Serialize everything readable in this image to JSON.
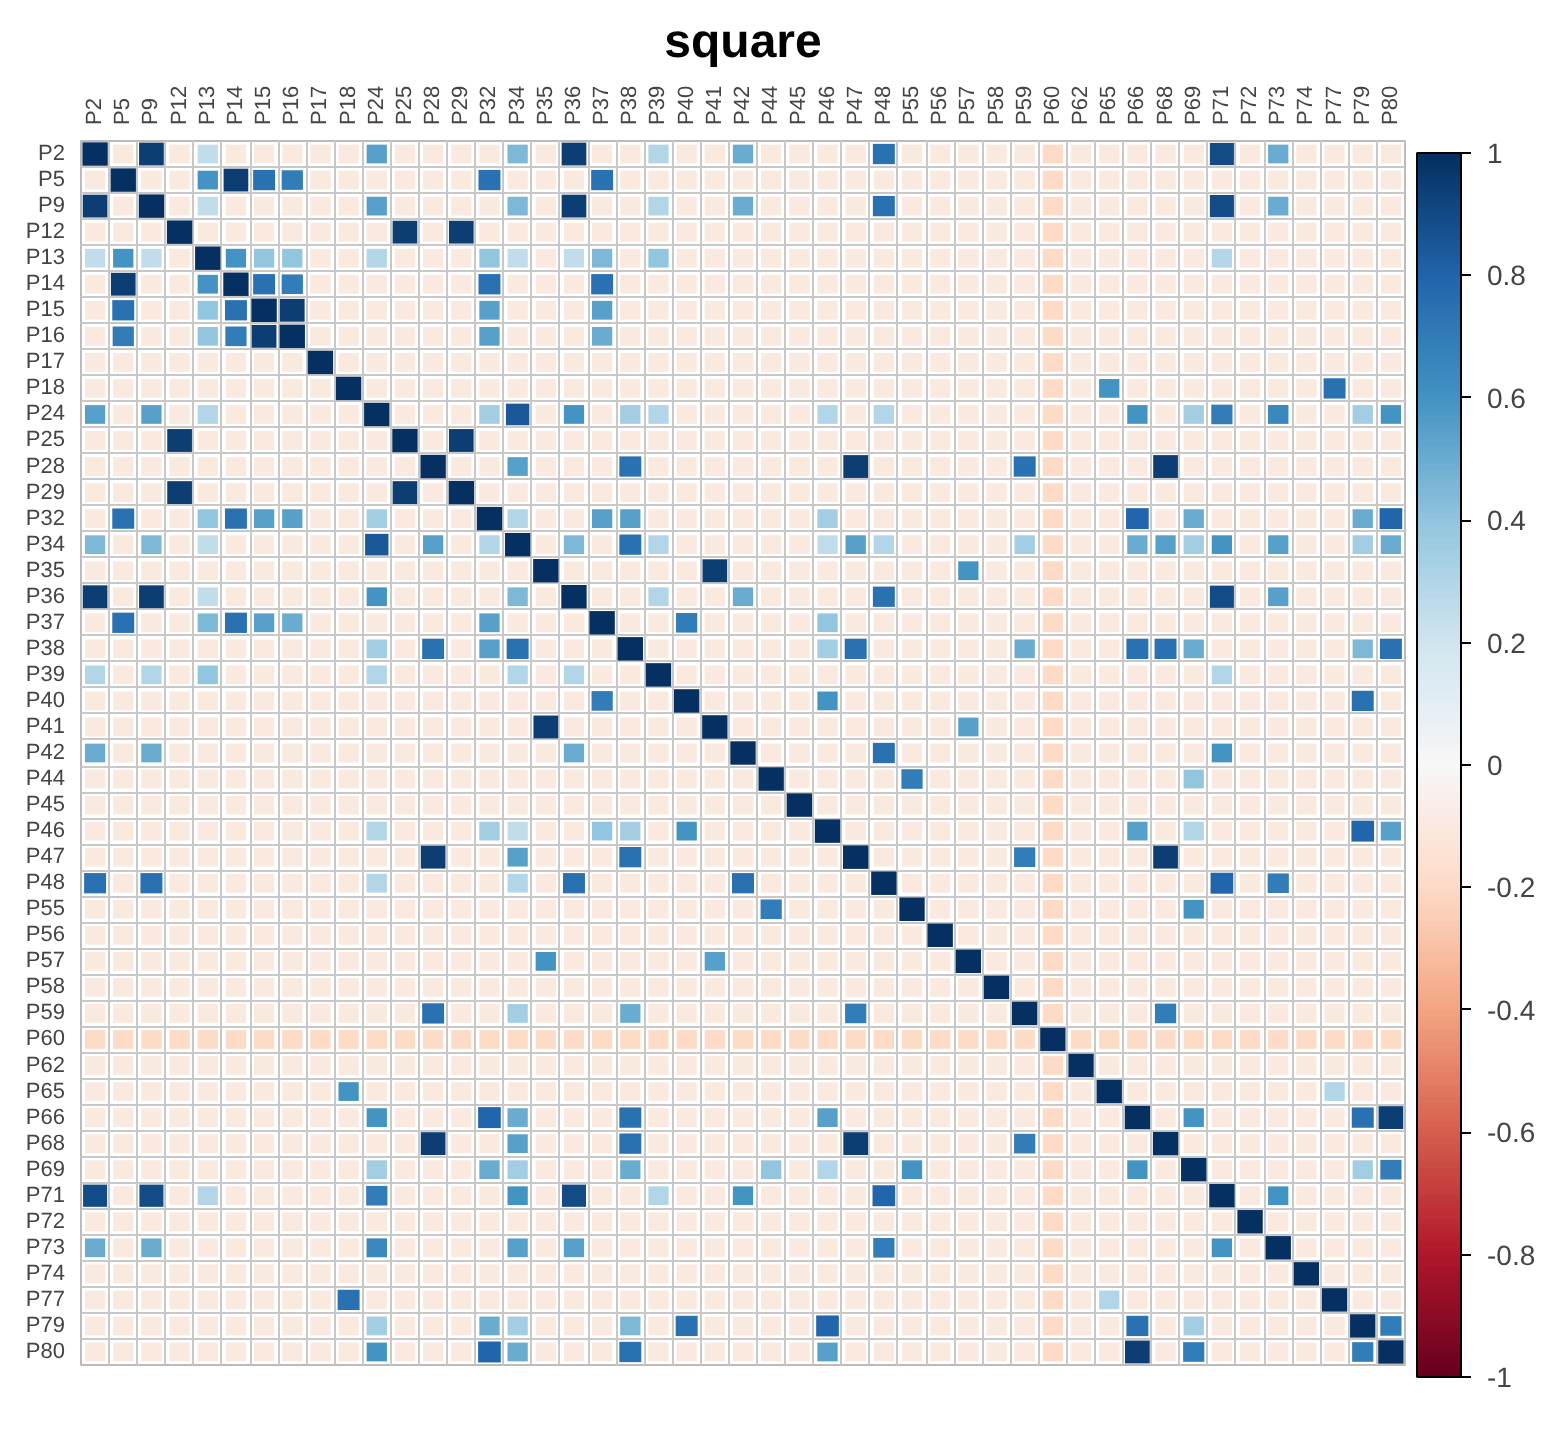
{
  "chart_data": {
    "type": "heatmap",
    "title": "square",
    "categories": [
      "P2",
      "P5",
      "P9",
      "P12",
      "P13",
      "P14",
      "P15",
      "P16",
      "P17",
      "P18",
      "P24",
      "P25",
      "P28",
      "P29",
      "P32",
      "P34",
      "P35",
      "P36",
      "P37",
      "P38",
      "P39",
      "P40",
      "P41",
      "P42",
      "P44",
      "P45",
      "P46",
      "P47",
      "P48",
      "P55",
      "P56",
      "P57",
      "P58",
      "P59",
      "P60",
      "P62",
      "P65",
      "P66",
      "P68",
      "P69",
      "P71",
      "P72",
      "P73",
      "P74",
      "P77",
      "P79",
      "P80"
    ],
    "y_categories": [
      "P2",
      "P5",
      "P9",
      "P12",
      "P13",
      "P14",
      "P15",
      "P16",
      "P17",
      "P18",
      "P24",
      "P25",
      "P28",
      "P29",
      "P32",
      "P34",
      "P35",
      "P36",
      "P37",
      "P38",
      "P39",
      "P40",
      "P41",
      "P42",
      "P44",
      "P45",
      "P46",
      "P47",
      "P48",
      "P55",
      "P56",
      "P57",
      "P58",
      "P59",
      "P60",
      "P62",
      "P65",
      "P66",
      "P68",
      "P69",
      "P71",
      "P72",
      "P73",
      "P74",
      "P77",
      "P79",
      "P80"
    ],
    "cells": [
      [
        1,
        -0.1,
        0.95,
        -0.1,
        0.25,
        -0.1,
        -0.1,
        -0.1,
        -0.1,
        -0.1,
        0.55,
        -0.1,
        -0.1,
        -0.1,
        -0.1,
        0.45,
        -0.1,
        0.95,
        -0.1,
        -0.1,
        0.3,
        -0.1,
        -0.1,
        0.5,
        -0.1,
        -0.1,
        -0.1,
        -0.1,
        0.75,
        -0.1,
        -0.1,
        -0.1,
        -0.1,
        -0.1,
        -0.2,
        -0.1,
        -0.1,
        -0.1,
        -0.1,
        -0.1,
        0.9,
        -0.1,
        0.5,
        -0.1,
        -0.1,
        -0.1,
        -0.1
      ],
      [
        -0.1,
        1,
        -0.1,
        -0.1,
        0.6,
        0.95,
        0.75,
        0.7,
        -0.1,
        -0.1,
        -0.1,
        -0.1,
        -0.1,
        -0.1,
        0.75,
        -0.1,
        -0.1,
        -0.1,
        0.75,
        -0.1,
        -0.1,
        -0.1,
        -0.1,
        -0.1,
        -0.1,
        -0.1,
        -0.1,
        -0.1,
        -0.1,
        -0.1,
        -0.1,
        -0.1,
        -0.1,
        -0.1,
        -0.2,
        -0.1,
        -0.1,
        -0.1,
        -0.1,
        -0.1,
        -0.1,
        -0.1,
        -0.1,
        -0.1,
        -0.1,
        -0.1,
        -0.1
      ],
      [
        0.95,
        -0.1,
        1,
        -0.1,
        0.25,
        -0.1,
        -0.1,
        -0.1,
        -0.1,
        -0.1,
        0.55,
        -0.1,
        -0.1,
        -0.1,
        -0.1,
        0.45,
        -0.1,
        0.95,
        -0.1,
        -0.1,
        0.3,
        -0.1,
        -0.1,
        0.5,
        -0.1,
        -0.1,
        -0.1,
        -0.1,
        0.75,
        -0.1,
        -0.1,
        -0.1,
        -0.1,
        -0.1,
        -0.2,
        -0.1,
        -0.1,
        -0.1,
        -0.1,
        -0.1,
        0.9,
        -0.1,
        0.5,
        -0.1,
        -0.1,
        -0.1,
        -0.1
      ],
      [
        -0.1,
        -0.1,
        -0.1,
        1,
        -0.1,
        -0.1,
        -0.1,
        -0.1,
        -0.1,
        -0.1,
        -0.1,
        0.95,
        -0.1,
        0.95,
        -0.1,
        -0.1,
        -0.1,
        -0.1,
        -0.1,
        -0.1,
        -0.1,
        -0.1,
        -0.1,
        -0.1,
        -0.1,
        -0.1,
        -0.1,
        -0.1,
        -0.1,
        -0.1,
        -0.1,
        -0.1,
        -0.1,
        -0.1,
        -0.2,
        -0.1,
        -0.1,
        -0.1,
        -0.1,
        -0.1,
        -0.1,
        -0.1,
        -0.1,
        -0.1,
        -0.1,
        -0.1,
        -0.1
      ],
      [
        0.25,
        0.6,
        0.25,
        -0.1,
        1,
        0.6,
        0.4,
        0.4,
        -0.1,
        -0.1,
        0.3,
        -0.1,
        -0.1,
        -0.1,
        0.4,
        0.25,
        -0.1,
        0.25,
        0.45,
        -0.1,
        0.4,
        -0.1,
        -0.1,
        -0.1,
        -0.1,
        -0.1,
        -0.1,
        -0.1,
        -0.1,
        -0.1,
        -0.1,
        -0.1,
        -0.1,
        -0.1,
        -0.2,
        -0.1,
        -0.1,
        -0.1,
        -0.1,
        -0.1,
        0.3,
        -0.1,
        -0.1,
        -0.1,
        -0.1,
        -0.1,
        -0.1
      ],
      [
        -0.1,
        0.95,
        -0.1,
        -0.1,
        0.6,
        1,
        0.75,
        0.7,
        -0.1,
        -0.1,
        -0.1,
        -0.1,
        -0.1,
        -0.1,
        0.75,
        -0.1,
        -0.1,
        -0.1,
        0.75,
        -0.1,
        -0.1,
        -0.1,
        -0.1,
        -0.1,
        -0.1,
        -0.1,
        -0.1,
        -0.1,
        -0.1,
        -0.1,
        -0.1,
        -0.1,
        -0.1,
        -0.1,
        -0.2,
        -0.1,
        -0.1,
        -0.1,
        -0.1,
        -0.1,
        -0.1,
        -0.1,
        -0.1,
        -0.1,
        -0.1,
        -0.1,
        -0.1
      ],
      [
        -0.1,
        0.75,
        -0.1,
        -0.1,
        0.4,
        0.75,
        1,
        0.95,
        -0.1,
        -0.1,
        -0.1,
        -0.1,
        -0.1,
        -0.1,
        0.55,
        -0.1,
        -0.1,
        -0.1,
        0.55,
        -0.1,
        -0.1,
        -0.1,
        -0.1,
        -0.1,
        -0.1,
        -0.1,
        -0.1,
        -0.1,
        -0.1,
        -0.1,
        -0.1,
        -0.1,
        -0.1,
        -0.1,
        -0.2,
        -0.1,
        -0.1,
        -0.1,
        -0.1,
        -0.1,
        -0.1,
        -0.1,
        -0.1,
        -0.1,
        -0.1,
        -0.1,
        -0.1
      ],
      [
        -0.1,
        0.7,
        -0.1,
        -0.1,
        0.4,
        0.7,
        0.95,
        1,
        -0.1,
        -0.1,
        -0.1,
        -0.1,
        -0.1,
        -0.1,
        0.55,
        -0.1,
        -0.1,
        -0.1,
        0.5,
        -0.1,
        -0.1,
        -0.1,
        -0.1,
        -0.1,
        -0.1,
        -0.1,
        -0.1,
        -0.1,
        -0.1,
        -0.1,
        -0.1,
        -0.1,
        -0.1,
        -0.1,
        -0.2,
        -0.1,
        -0.1,
        -0.1,
        -0.1,
        -0.1,
        -0.1,
        -0.1,
        -0.1,
        -0.1,
        -0.1,
        -0.1,
        -0.1
      ],
      [
        -0.1,
        -0.1,
        -0.1,
        -0.1,
        -0.1,
        -0.1,
        -0.1,
        -0.1,
        1,
        -0.1,
        -0.1,
        -0.1,
        -0.1,
        -0.1,
        -0.1,
        -0.1,
        -0.1,
        -0.1,
        -0.1,
        -0.1,
        -0.1,
        -0.1,
        -0.1,
        -0.1,
        -0.1,
        -0.1,
        -0.1,
        -0.1,
        -0.1,
        -0.1,
        -0.1,
        -0.1,
        -0.1,
        -0.1,
        -0.2,
        -0.1,
        -0.1,
        -0.1,
        -0.1,
        -0.1,
        -0.1,
        -0.1,
        -0.1,
        -0.1,
        -0.1,
        -0.1,
        -0.1
      ],
      [
        -0.1,
        -0.1,
        -0.1,
        -0.1,
        -0.1,
        -0.1,
        -0.1,
        -0.1,
        -0.1,
        1,
        -0.1,
        -0.1,
        -0.1,
        -0.1,
        -0.1,
        -0.1,
        -0.1,
        -0.1,
        -0.1,
        -0.1,
        -0.1,
        -0.1,
        -0.1,
        -0.1,
        -0.1,
        -0.1,
        -0.1,
        -0.1,
        -0.1,
        -0.1,
        -0.1,
        -0.1,
        -0.1,
        -0.1,
        -0.2,
        -0.1,
        0.6,
        -0.1,
        -0.1,
        -0.1,
        -0.1,
        -0.1,
        -0.1,
        -0.1,
        0.75,
        -0.1,
        -0.1
      ],
      [
        0.55,
        -0.1,
        0.55,
        -0.1,
        0.3,
        -0.1,
        -0.1,
        -0.1,
        -0.1,
        -0.1,
        1,
        -0.1,
        -0.1,
        -0.1,
        0.35,
        0.85,
        -0.1,
        0.6,
        -0.1,
        0.35,
        0.3,
        -0.1,
        -0.1,
        -0.1,
        -0.1,
        -0.1,
        0.3,
        -0.1,
        0.3,
        -0.1,
        -0.1,
        -0.1,
        -0.1,
        -0.1,
        -0.2,
        -0.1,
        -0.1,
        0.6,
        -0.1,
        0.35,
        0.7,
        -0.1,
        0.65,
        -0.1,
        -0.1,
        0.35,
        0.6
      ],
      [
        -0.1,
        -0.1,
        -0.1,
        0.95,
        -0.1,
        -0.1,
        -0.1,
        -0.1,
        -0.1,
        -0.1,
        -0.1,
        1,
        -0.1,
        0.95,
        -0.1,
        -0.1,
        -0.1,
        -0.1,
        -0.1,
        -0.1,
        -0.1,
        -0.1,
        -0.1,
        -0.1,
        -0.1,
        -0.1,
        -0.1,
        -0.1,
        -0.1,
        -0.1,
        -0.1,
        -0.1,
        -0.1,
        -0.1,
        -0.2,
        -0.1,
        -0.1,
        -0.1,
        -0.1,
        -0.1,
        -0.1,
        -0.1,
        -0.1,
        -0.1,
        -0.1,
        -0.1,
        -0.1
      ],
      [
        -0.1,
        -0.1,
        -0.1,
        -0.1,
        -0.1,
        -0.1,
        -0.1,
        -0.1,
        -0.1,
        -0.1,
        -0.1,
        -0.1,
        1,
        -0.1,
        -0.1,
        0.55,
        -0.1,
        -0.1,
        -0.1,
        0.75,
        -0.1,
        -0.1,
        -0.1,
        -0.1,
        -0.1,
        -0.1,
        -0.1,
        0.95,
        -0.1,
        -0.1,
        -0.1,
        -0.1,
        -0.1,
        0.75,
        -0.2,
        -0.1,
        -0.1,
        -0.1,
        0.95,
        -0.1,
        -0.1,
        -0.1,
        -0.1,
        -0.1,
        -0.1,
        -0.1,
        -0.1
      ],
      [
        -0.1,
        -0.1,
        -0.1,
        0.95,
        -0.1,
        -0.1,
        -0.1,
        -0.1,
        -0.1,
        -0.1,
        -0.1,
        0.95,
        -0.1,
        1,
        -0.1,
        -0.1,
        -0.1,
        -0.1,
        -0.1,
        -0.1,
        -0.1,
        -0.1,
        -0.1,
        -0.1,
        -0.1,
        -0.1,
        -0.1,
        -0.1,
        -0.1,
        -0.1,
        -0.1,
        -0.1,
        -0.1,
        -0.1,
        -0.2,
        -0.1,
        -0.1,
        -0.1,
        -0.1,
        -0.1,
        -0.1,
        -0.1,
        -0.1,
        -0.1,
        -0.1,
        -0.1,
        -0.1
      ],
      [
        -0.1,
        0.75,
        -0.1,
        -0.1,
        0.4,
        0.75,
        0.55,
        0.55,
        -0.1,
        -0.1,
        0.35,
        -0.1,
        -0.1,
        -0.1,
        1,
        0.3,
        -0.1,
        -0.1,
        0.55,
        0.55,
        -0.1,
        -0.1,
        -0.1,
        -0.1,
        -0.1,
        -0.1,
        0.35,
        -0.1,
        -0.1,
        -0.1,
        -0.1,
        -0.1,
        -0.1,
        -0.1,
        -0.2,
        -0.1,
        -0.1,
        0.8,
        -0.1,
        0.5,
        -0.1,
        -0.1,
        -0.1,
        -0.1,
        -0.1,
        0.5,
        0.8
      ],
      [
        0.45,
        -0.1,
        0.45,
        -0.1,
        0.25,
        -0.1,
        -0.1,
        -0.1,
        -0.1,
        -0.1,
        0.85,
        -0.1,
        0.55,
        -0.1,
        0.3,
        1,
        -0.1,
        0.45,
        -0.1,
        0.75,
        0.3,
        -0.1,
        -0.1,
        -0.1,
        -0.1,
        -0.1,
        0.25,
        0.55,
        0.3,
        -0.1,
        -0.1,
        -0.1,
        -0.1,
        0.35,
        -0.2,
        -0.1,
        -0.1,
        0.5,
        0.55,
        0.35,
        0.6,
        -0.1,
        0.55,
        -0.1,
        -0.1,
        0.35,
        0.5
      ],
      [
        -0.1,
        -0.1,
        -0.1,
        -0.1,
        -0.1,
        -0.1,
        -0.1,
        -0.1,
        -0.1,
        -0.1,
        -0.1,
        -0.1,
        -0.1,
        -0.1,
        -0.1,
        -0.1,
        1,
        -0.1,
        -0.1,
        -0.1,
        -0.1,
        -0.1,
        0.95,
        -0.1,
        -0.1,
        -0.1,
        -0.1,
        -0.1,
        -0.1,
        -0.1,
        -0.1,
        0.6,
        -0.1,
        -0.1,
        -0.2,
        -0.1,
        -0.1,
        -0.1,
        -0.1,
        -0.1,
        -0.1,
        -0.1,
        -0.1,
        -0.1,
        -0.1,
        -0.1,
        -0.1
      ],
      [
        0.95,
        -0.1,
        0.95,
        -0.1,
        0.25,
        -0.1,
        -0.1,
        -0.1,
        -0.1,
        -0.1,
        0.6,
        -0.1,
        -0.1,
        -0.1,
        -0.1,
        0.45,
        -0.1,
        1,
        -0.1,
        -0.1,
        0.3,
        -0.1,
        -0.1,
        0.5,
        -0.1,
        -0.1,
        -0.1,
        -0.1,
        0.75,
        -0.1,
        -0.1,
        -0.1,
        -0.1,
        -0.1,
        -0.2,
        -0.1,
        -0.1,
        -0.1,
        -0.1,
        -0.1,
        0.9,
        -0.1,
        0.55,
        -0.1,
        -0.1,
        -0.1,
        -0.1
      ],
      [
        -0.1,
        0.75,
        -0.1,
        -0.1,
        0.45,
        0.75,
        0.55,
        0.5,
        -0.1,
        -0.1,
        -0.1,
        -0.1,
        -0.1,
        -0.1,
        0.55,
        -0.1,
        -0.1,
        -0.1,
        1,
        -0.1,
        -0.1,
        0.7,
        -0.1,
        -0.1,
        -0.1,
        -0.1,
        0.4,
        -0.1,
        -0.1,
        -0.1,
        -0.1,
        -0.1,
        -0.1,
        -0.1,
        -0.2,
        -0.1,
        -0.1,
        -0.1,
        -0.1,
        -0.1,
        -0.1,
        -0.1,
        -0.1,
        -0.1,
        -0.1,
        -0.1,
        -0.1
      ],
      [
        -0.1,
        -0.1,
        -0.1,
        -0.1,
        -0.1,
        -0.1,
        -0.1,
        -0.1,
        -0.1,
        -0.1,
        0.35,
        -0.1,
        0.75,
        -0.1,
        0.55,
        0.75,
        -0.1,
        -0.1,
        -0.1,
        1,
        -0.1,
        -0.1,
        -0.1,
        -0.1,
        -0.1,
        -0.1,
        0.35,
        0.75,
        -0.1,
        -0.1,
        -0.1,
        -0.1,
        -0.1,
        0.5,
        -0.2,
        -0.1,
        -0.1,
        0.75,
        0.75,
        0.5,
        -0.1,
        -0.1,
        -0.1,
        -0.1,
        -0.1,
        0.45,
        0.75
      ],
      [
        0.3,
        -0.1,
        0.3,
        -0.1,
        0.4,
        -0.1,
        -0.1,
        -0.1,
        -0.1,
        -0.1,
        0.3,
        -0.1,
        -0.1,
        -0.1,
        -0.1,
        0.3,
        -0.1,
        0.3,
        -0.1,
        -0.1,
        1,
        -0.1,
        -0.1,
        -0.1,
        -0.1,
        -0.1,
        -0.1,
        -0.1,
        -0.1,
        -0.1,
        -0.1,
        -0.1,
        -0.1,
        -0.1,
        -0.2,
        -0.1,
        -0.1,
        -0.1,
        -0.1,
        -0.1,
        0.3,
        -0.1,
        -0.1,
        -0.1,
        -0.1,
        -0.1,
        -0.1
      ],
      [
        -0.1,
        -0.1,
        -0.1,
        -0.1,
        -0.1,
        -0.1,
        -0.1,
        -0.1,
        -0.1,
        -0.1,
        -0.1,
        -0.1,
        -0.1,
        -0.1,
        -0.1,
        -0.1,
        -0.1,
        -0.1,
        0.7,
        -0.1,
        -0.1,
        1,
        -0.1,
        -0.1,
        -0.1,
        -0.1,
        0.6,
        -0.1,
        -0.1,
        -0.1,
        -0.1,
        -0.1,
        -0.1,
        -0.1,
        -0.2,
        -0.1,
        -0.1,
        -0.1,
        -0.1,
        -0.1,
        -0.1,
        -0.1,
        -0.1,
        -0.1,
        -0.1,
        0.75,
        -0.1
      ],
      [
        -0.1,
        -0.1,
        -0.1,
        -0.1,
        -0.1,
        -0.1,
        -0.1,
        -0.1,
        -0.1,
        -0.1,
        -0.1,
        -0.1,
        -0.1,
        -0.1,
        -0.1,
        -0.1,
        0.95,
        -0.1,
        -0.1,
        -0.1,
        -0.1,
        -0.1,
        1,
        -0.1,
        -0.1,
        -0.1,
        -0.1,
        -0.1,
        -0.1,
        -0.1,
        -0.1,
        0.55,
        -0.1,
        -0.1,
        -0.2,
        -0.1,
        -0.1,
        -0.1,
        -0.1,
        -0.1,
        -0.1,
        -0.1,
        -0.1,
        -0.1,
        -0.1,
        -0.1,
        -0.1
      ],
      [
        0.5,
        -0.1,
        0.5,
        -0.1,
        -0.1,
        -0.1,
        -0.1,
        -0.1,
        -0.1,
        -0.1,
        -0.1,
        -0.1,
        -0.1,
        -0.1,
        -0.1,
        -0.1,
        -0.1,
        0.5,
        -0.1,
        -0.1,
        -0.1,
        -0.1,
        -0.1,
        1,
        -0.1,
        -0.1,
        -0.1,
        -0.1,
        0.75,
        -0.1,
        -0.1,
        -0.1,
        -0.1,
        -0.1,
        -0.2,
        -0.1,
        -0.1,
        -0.1,
        -0.1,
        -0.1,
        0.6,
        -0.1,
        -0.1,
        -0.1,
        -0.1,
        -0.1,
        -0.1
      ],
      [
        -0.1,
        -0.1,
        -0.1,
        -0.1,
        -0.1,
        -0.1,
        -0.1,
        -0.1,
        -0.1,
        -0.1,
        -0.1,
        -0.1,
        -0.1,
        -0.1,
        -0.1,
        -0.1,
        -0.1,
        -0.1,
        -0.1,
        -0.1,
        -0.1,
        -0.1,
        -0.1,
        -0.1,
        1,
        -0.1,
        -0.1,
        -0.1,
        -0.1,
        0.7,
        -0.1,
        -0.1,
        -0.1,
        -0.1,
        -0.2,
        -0.1,
        -0.1,
        -0.1,
        -0.1,
        0.4,
        -0.1,
        -0.1,
        -0.1,
        -0.1,
        -0.1,
        -0.1,
        -0.1
      ],
      [
        -0.1,
        -0.1,
        -0.1,
        -0.1,
        -0.1,
        -0.1,
        -0.1,
        -0.1,
        -0.1,
        -0.1,
        -0.1,
        -0.1,
        -0.1,
        -0.1,
        -0.1,
        -0.1,
        -0.1,
        -0.1,
        -0.1,
        -0.1,
        -0.1,
        -0.1,
        -0.1,
        -0.1,
        -0.1,
        1,
        -0.1,
        -0.1,
        -0.1,
        -0.1,
        -0.1,
        -0.1,
        -0.1,
        -0.1,
        -0.2,
        -0.1,
        -0.1,
        -0.1,
        -0.1,
        -0.1,
        -0.1,
        -0.1,
        -0.1,
        -0.1,
        -0.1,
        -0.1,
        -0.1
      ],
      [
        -0.1,
        -0.1,
        -0.1,
        -0.1,
        -0.1,
        -0.1,
        -0.1,
        -0.1,
        -0.1,
        -0.1,
        0.3,
        -0.1,
        -0.1,
        -0.1,
        0.35,
        0.25,
        -0.1,
        -0.1,
        0.4,
        0.35,
        -0.1,
        0.6,
        -0.1,
        -0.1,
        -0.1,
        -0.1,
        1,
        -0.1,
        -0.1,
        -0.1,
        -0.1,
        -0.1,
        -0.1,
        -0.1,
        -0.2,
        -0.1,
        -0.1,
        0.55,
        -0.1,
        0.3,
        -0.1,
        -0.1,
        -0.1,
        -0.1,
        -0.1,
        0.8,
        0.55
      ],
      [
        -0.1,
        -0.1,
        -0.1,
        -0.1,
        -0.1,
        -0.1,
        -0.1,
        -0.1,
        -0.1,
        -0.1,
        -0.1,
        -0.1,
        0.95,
        -0.1,
        -0.1,
        0.55,
        -0.1,
        -0.1,
        -0.1,
        0.75,
        -0.1,
        -0.1,
        -0.1,
        -0.1,
        -0.1,
        -0.1,
        -0.1,
        1,
        -0.1,
        -0.1,
        -0.1,
        -0.1,
        -0.1,
        0.7,
        -0.2,
        -0.1,
        -0.1,
        -0.1,
        0.95,
        -0.1,
        -0.1,
        -0.1,
        -0.1,
        -0.1,
        -0.1,
        -0.1,
        -0.1
      ],
      [
        0.75,
        -0.1,
        0.75,
        -0.1,
        -0.1,
        -0.1,
        -0.1,
        -0.1,
        -0.1,
        -0.1,
        0.3,
        -0.1,
        -0.1,
        -0.1,
        -0.1,
        0.3,
        -0.1,
        0.75,
        -0.1,
        -0.1,
        -0.1,
        -0.1,
        -0.1,
        0.75,
        -0.1,
        -0.1,
        -0.1,
        -0.1,
        1,
        -0.1,
        -0.1,
        -0.1,
        -0.1,
        -0.1,
        -0.2,
        -0.1,
        -0.1,
        -0.1,
        -0.1,
        -0.1,
        0.8,
        -0.1,
        0.7,
        -0.1,
        -0.1,
        -0.1,
        -0.1
      ],
      [
        -0.1,
        -0.1,
        -0.1,
        -0.1,
        -0.1,
        -0.1,
        -0.1,
        -0.1,
        -0.1,
        -0.1,
        -0.1,
        -0.1,
        -0.1,
        -0.1,
        -0.1,
        -0.1,
        -0.1,
        -0.1,
        -0.1,
        -0.1,
        -0.1,
        -0.1,
        -0.1,
        -0.1,
        0.7,
        -0.1,
        -0.1,
        -0.1,
        -0.1,
        1,
        -0.1,
        -0.1,
        -0.1,
        -0.1,
        -0.2,
        -0.1,
        -0.1,
        -0.1,
        -0.1,
        0.6,
        -0.1,
        -0.1,
        -0.1,
        -0.1,
        -0.1,
        -0.1,
        -0.1
      ],
      [
        -0.1,
        -0.1,
        -0.1,
        -0.1,
        -0.1,
        -0.1,
        -0.1,
        -0.1,
        -0.1,
        -0.1,
        -0.1,
        -0.1,
        -0.1,
        -0.1,
        -0.1,
        -0.1,
        -0.1,
        -0.1,
        -0.1,
        -0.1,
        -0.1,
        -0.1,
        -0.1,
        -0.1,
        -0.1,
        -0.1,
        -0.1,
        -0.1,
        -0.1,
        -0.1,
        1,
        -0.1,
        -0.1,
        -0.1,
        -0.2,
        -0.1,
        -0.1,
        -0.1,
        -0.1,
        -0.1,
        -0.1,
        -0.1,
        -0.1,
        -0.1,
        -0.1,
        -0.1,
        -0.1
      ],
      [
        -0.1,
        -0.1,
        -0.1,
        -0.1,
        -0.1,
        -0.1,
        -0.1,
        -0.1,
        -0.1,
        -0.1,
        -0.1,
        -0.1,
        -0.1,
        -0.1,
        -0.1,
        -0.1,
        0.6,
        -0.1,
        -0.1,
        -0.1,
        -0.1,
        -0.1,
        0.55,
        -0.1,
        -0.1,
        -0.1,
        -0.1,
        -0.1,
        -0.1,
        -0.1,
        -0.1,
        1,
        -0.1,
        -0.1,
        -0.2,
        -0.1,
        -0.1,
        -0.1,
        -0.1,
        -0.1,
        -0.1,
        -0.1,
        -0.1,
        -0.1,
        -0.1,
        -0.1,
        -0.1
      ],
      [
        -0.1,
        -0.1,
        -0.1,
        -0.1,
        -0.1,
        -0.1,
        -0.1,
        -0.1,
        -0.1,
        -0.1,
        -0.1,
        -0.1,
        -0.1,
        -0.1,
        -0.1,
        -0.1,
        -0.1,
        -0.1,
        -0.1,
        -0.1,
        -0.1,
        -0.1,
        -0.1,
        -0.1,
        -0.1,
        -0.1,
        -0.1,
        -0.1,
        -0.1,
        -0.1,
        -0.1,
        -0.1,
        1,
        -0.1,
        -0.2,
        -0.1,
        -0.1,
        -0.1,
        -0.1,
        -0.1,
        -0.1,
        -0.1,
        -0.1,
        -0.1,
        -0.1,
        -0.1,
        -0.1
      ],
      [
        -0.1,
        -0.1,
        -0.1,
        -0.1,
        -0.1,
        -0.1,
        -0.1,
        -0.1,
        -0.1,
        -0.1,
        -0.1,
        -0.1,
        0.75,
        -0.1,
        -0.1,
        0.35,
        -0.1,
        -0.1,
        -0.1,
        0.5,
        -0.1,
        -0.1,
        -0.1,
        -0.1,
        -0.1,
        -0.1,
        -0.1,
        0.7,
        -0.1,
        -0.1,
        -0.1,
        -0.1,
        -0.1,
        1,
        -0.2,
        -0.1,
        -0.1,
        -0.1,
        0.7,
        -0.1,
        -0.1,
        -0.1,
        -0.1,
        -0.1,
        -0.1,
        -0.1,
        -0.1
      ],
      [
        -0.2,
        -0.2,
        -0.2,
        -0.2,
        -0.2,
        -0.2,
        -0.2,
        -0.2,
        -0.2,
        -0.2,
        -0.2,
        -0.2,
        -0.2,
        -0.2,
        -0.2,
        -0.2,
        -0.2,
        -0.2,
        -0.2,
        -0.2,
        -0.2,
        -0.2,
        -0.2,
        -0.2,
        -0.2,
        -0.2,
        -0.2,
        -0.2,
        -0.2,
        -0.2,
        -0.2,
        -0.2,
        -0.2,
        -0.2,
        1,
        -0.2,
        -0.2,
        -0.2,
        -0.2,
        -0.2,
        -0.2,
        -0.2,
        -0.2,
        -0.2,
        -0.2,
        -0.2,
        -0.2
      ],
      [
        -0.1,
        -0.1,
        -0.1,
        -0.1,
        -0.1,
        -0.1,
        -0.1,
        -0.1,
        -0.1,
        -0.1,
        -0.1,
        -0.1,
        -0.1,
        -0.1,
        -0.1,
        -0.1,
        -0.1,
        -0.1,
        -0.1,
        -0.1,
        -0.1,
        -0.1,
        -0.1,
        -0.1,
        -0.1,
        -0.1,
        -0.1,
        -0.1,
        -0.1,
        -0.1,
        -0.1,
        -0.1,
        -0.1,
        -0.1,
        -0.2,
        1,
        -0.1,
        -0.1,
        -0.1,
        -0.1,
        -0.1,
        -0.1,
        -0.1,
        -0.1,
        -0.1,
        -0.1,
        -0.1
      ],
      [
        -0.1,
        -0.1,
        -0.1,
        -0.1,
        -0.1,
        -0.1,
        -0.1,
        -0.1,
        -0.1,
        0.6,
        -0.1,
        -0.1,
        -0.1,
        -0.1,
        -0.1,
        -0.1,
        -0.1,
        -0.1,
        -0.1,
        -0.1,
        -0.1,
        -0.1,
        -0.1,
        -0.1,
        -0.1,
        -0.1,
        -0.1,
        -0.1,
        -0.1,
        -0.1,
        -0.1,
        -0.1,
        -0.1,
        -0.1,
        -0.2,
        -0.1,
        1,
        -0.1,
        -0.1,
        -0.1,
        -0.1,
        -0.1,
        -0.1,
        -0.1,
        0.3,
        -0.1,
        -0.1
      ],
      [
        -0.1,
        -0.1,
        -0.1,
        -0.1,
        -0.1,
        -0.1,
        -0.1,
        -0.1,
        -0.1,
        -0.1,
        0.6,
        -0.1,
        -0.1,
        -0.1,
        0.8,
        0.5,
        -0.1,
        -0.1,
        -0.1,
        0.75,
        -0.1,
        -0.1,
        -0.1,
        -0.1,
        -0.1,
        -0.1,
        0.55,
        -0.1,
        -0.1,
        -0.1,
        -0.1,
        -0.1,
        -0.1,
        -0.1,
        -0.2,
        -0.1,
        -0.1,
        1,
        -0.1,
        0.6,
        -0.1,
        -0.1,
        -0.1,
        -0.1,
        -0.1,
        0.75,
        0.95
      ],
      [
        -0.1,
        -0.1,
        -0.1,
        -0.1,
        -0.1,
        -0.1,
        -0.1,
        -0.1,
        -0.1,
        -0.1,
        -0.1,
        -0.1,
        0.95,
        -0.1,
        -0.1,
        0.55,
        -0.1,
        -0.1,
        -0.1,
        0.75,
        -0.1,
        -0.1,
        -0.1,
        -0.1,
        -0.1,
        -0.1,
        -0.1,
        0.95,
        -0.1,
        -0.1,
        -0.1,
        -0.1,
        -0.1,
        0.7,
        -0.2,
        -0.1,
        -0.1,
        -0.1,
        1,
        -0.1,
        -0.1,
        -0.1,
        -0.1,
        -0.1,
        -0.1,
        -0.1,
        -0.1
      ],
      [
        -0.1,
        -0.1,
        -0.1,
        -0.1,
        -0.1,
        -0.1,
        -0.1,
        -0.1,
        -0.1,
        -0.1,
        0.35,
        -0.1,
        -0.1,
        -0.1,
        0.5,
        0.35,
        -0.1,
        -0.1,
        -0.1,
        0.5,
        -0.1,
        -0.1,
        -0.1,
        -0.1,
        0.4,
        -0.1,
        0.3,
        -0.1,
        -0.1,
        0.6,
        -0.1,
        -0.1,
        -0.1,
        -0.1,
        -0.2,
        -0.1,
        -0.1,
        0.6,
        -0.1,
        1,
        -0.1,
        -0.1,
        -0.1,
        -0.1,
        -0.1,
        0.35,
        0.7
      ],
      [
        0.9,
        -0.1,
        0.9,
        -0.1,
        0.3,
        -0.1,
        -0.1,
        -0.1,
        -0.1,
        -0.1,
        0.7,
        -0.1,
        -0.1,
        -0.1,
        -0.1,
        0.6,
        -0.1,
        0.9,
        -0.1,
        -0.1,
        0.3,
        -0.1,
        -0.1,
        0.6,
        -0.1,
        -0.1,
        -0.1,
        -0.1,
        0.8,
        -0.1,
        -0.1,
        -0.1,
        -0.1,
        -0.1,
        -0.2,
        -0.1,
        -0.1,
        -0.1,
        -0.1,
        -0.1,
        1,
        -0.1,
        0.6,
        -0.1,
        -0.1,
        -0.1,
        -0.1
      ],
      [
        -0.1,
        -0.1,
        -0.1,
        -0.1,
        -0.1,
        -0.1,
        -0.1,
        -0.1,
        -0.1,
        -0.1,
        -0.1,
        -0.1,
        -0.1,
        -0.1,
        -0.1,
        -0.1,
        -0.1,
        -0.1,
        -0.1,
        -0.1,
        -0.1,
        -0.1,
        -0.1,
        -0.1,
        -0.1,
        -0.1,
        -0.1,
        -0.1,
        -0.1,
        -0.1,
        -0.1,
        -0.1,
        -0.1,
        -0.1,
        -0.2,
        -0.1,
        -0.1,
        -0.1,
        -0.1,
        -0.1,
        -0.1,
        1,
        -0.1,
        -0.1,
        -0.1,
        -0.1,
        -0.1
      ],
      [
        0.5,
        -0.1,
        0.5,
        -0.1,
        -0.1,
        -0.1,
        -0.1,
        -0.1,
        -0.1,
        -0.1,
        0.65,
        -0.1,
        -0.1,
        -0.1,
        -0.1,
        0.55,
        -0.1,
        0.55,
        -0.1,
        -0.1,
        -0.1,
        -0.1,
        -0.1,
        -0.1,
        -0.1,
        -0.1,
        -0.1,
        -0.1,
        0.7,
        -0.1,
        -0.1,
        -0.1,
        -0.1,
        -0.1,
        -0.2,
        -0.1,
        -0.1,
        -0.1,
        -0.1,
        -0.1,
        0.6,
        -0.1,
        1,
        -0.1,
        -0.1,
        -0.1,
        -0.1
      ],
      [
        -0.1,
        -0.1,
        -0.1,
        -0.1,
        -0.1,
        -0.1,
        -0.1,
        -0.1,
        -0.1,
        -0.1,
        -0.1,
        -0.1,
        -0.1,
        -0.1,
        -0.1,
        -0.1,
        -0.1,
        -0.1,
        -0.1,
        -0.1,
        -0.1,
        -0.1,
        -0.1,
        -0.1,
        -0.1,
        -0.1,
        -0.1,
        -0.1,
        -0.1,
        -0.1,
        -0.1,
        -0.1,
        -0.1,
        -0.1,
        -0.2,
        -0.1,
        -0.1,
        -0.1,
        -0.1,
        -0.1,
        -0.1,
        -0.1,
        -0.1,
        1,
        -0.1,
        -0.1,
        -0.1
      ],
      [
        -0.1,
        -0.1,
        -0.1,
        -0.1,
        -0.1,
        -0.1,
        -0.1,
        -0.1,
        -0.1,
        0.75,
        -0.1,
        -0.1,
        -0.1,
        -0.1,
        -0.1,
        -0.1,
        -0.1,
        -0.1,
        -0.1,
        -0.1,
        -0.1,
        -0.1,
        -0.1,
        -0.1,
        -0.1,
        -0.1,
        -0.1,
        -0.1,
        -0.1,
        -0.1,
        -0.1,
        -0.1,
        -0.1,
        -0.1,
        -0.2,
        -0.1,
        0.3,
        -0.1,
        -0.1,
        -0.1,
        -0.1,
        -0.1,
        -0.1,
        -0.1,
        1,
        -0.1,
        -0.1
      ],
      [
        -0.1,
        -0.1,
        -0.1,
        -0.1,
        -0.1,
        -0.1,
        -0.1,
        -0.1,
        -0.1,
        -0.1,
        0.35,
        -0.1,
        -0.1,
        -0.1,
        0.5,
        0.35,
        -0.1,
        -0.1,
        -0.1,
        0.45,
        -0.1,
        0.75,
        -0.1,
        -0.1,
        -0.1,
        -0.1,
        0.8,
        -0.1,
        -0.1,
        -0.1,
        -0.1,
        -0.1,
        -0.1,
        -0.1,
        -0.2,
        -0.1,
        -0.1,
        0.75,
        -0.1,
        0.35,
        -0.1,
        -0.1,
        -0.1,
        -0.1,
        -0.1,
        1,
        0.7
      ],
      [
        -0.1,
        -0.1,
        -0.1,
        -0.1,
        -0.1,
        -0.1,
        -0.1,
        -0.1,
        -0.1,
        -0.1,
        0.6,
        -0.1,
        -0.1,
        -0.1,
        0.8,
        0.5,
        -0.1,
        -0.1,
        -0.1,
        0.75,
        -0.1,
        -0.1,
        -0.1,
        -0.1,
        -0.1,
        -0.1,
        0.55,
        -0.1,
        -0.1,
        -0.1,
        -0.1,
        -0.1,
        -0.1,
        -0.1,
        -0.2,
        -0.1,
        -0.1,
        0.95,
        -0.1,
        0.7,
        -0.1,
        -0.1,
        -0.1,
        -0.1,
        -0.1,
        0.7,
        1
      ]
    ],
    "clim": [
      -1,
      1
    ],
    "cticks": [
      -1,
      -0.8,
      -0.6,
      -0.4,
      -0.2,
      0,
      0.2,
      0.4,
      0.6,
      0.8,
      1
    ],
    "grid": true
  }
}
